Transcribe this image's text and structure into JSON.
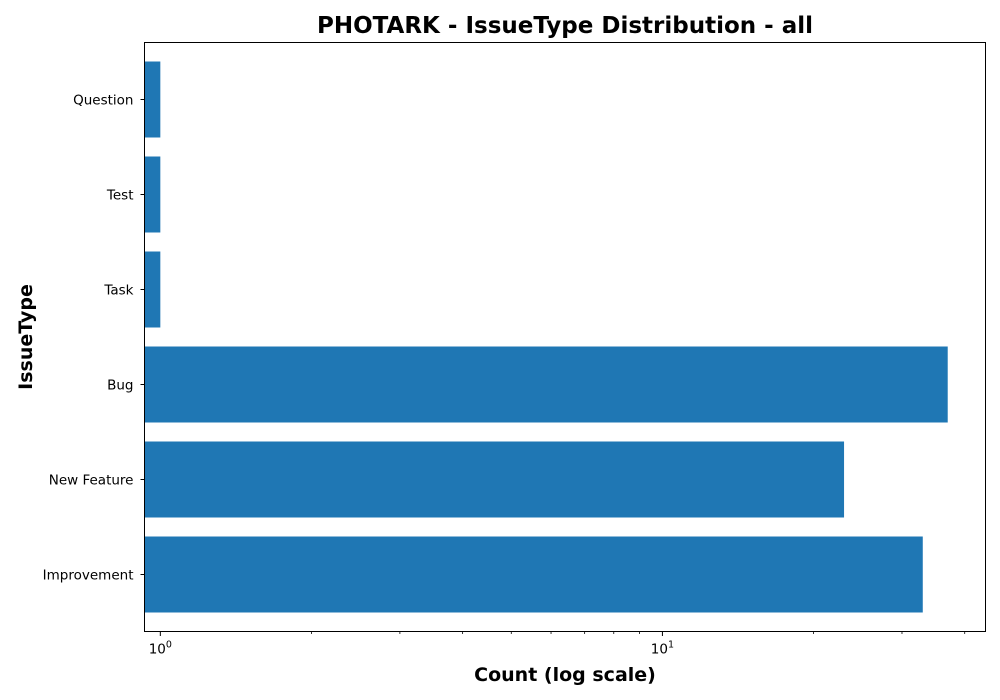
{
  "chart_data": {
    "type": "bar",
    "orientation": "horizontal",
    "title": "PHOTARK - IssueType Distribution - all",
    "xlabel": "Count (log scale)",
    "ylabel": "IssueType",
    "x_scale": "log",
    "xlim": [
      0.93,
      44
    ],
    "categories": [
      "Improvement",
      "New Feature",
      "Bug",
      "Task",
      "Test",
      "Question"
    ],
    "values": [
      33,
      23,
      37,
      1,
      1,
      1
    ],
    "major_ticks": [
      {
        "base": "10",
        "exp": "0",
        "value": 1
      },
      {
        "base": "10",
        "exp": "1",
        "value": 10
      }
    ],
    "minor_ticks": [
      2,
      3,
      4,
      5,
      6,
      7,
      8,
      9,
      20,
      30,
      40
    ],
    "bar_color": "#1f77b4",
    "grid": false,
    "legend": "none"
  }
}
